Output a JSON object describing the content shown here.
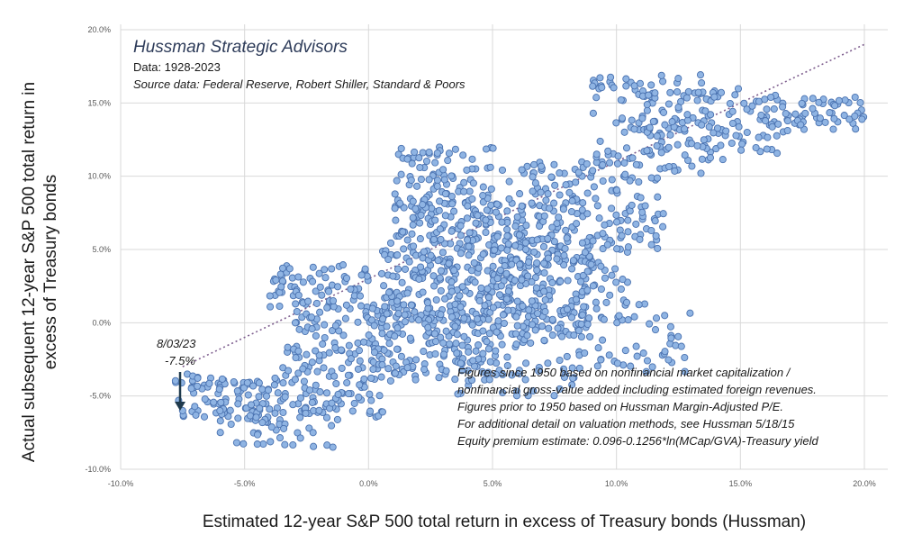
{
  "header": {
    "brand": "Hussman Strategic Advisors",
    "data_range": "Data: 1928-2023",
    "source": "Source data: Federal Reserve, Robert Shiller, Standard & Poors"
  },
  "annotation": {
    "date": "8/03/23",
    "value": "-7.5%"
  },
  "notes": [
    "Figures since 1950 based on nonfinancial market capitalization /",
    "nonfinancial gross-value added including estimated foreign revenues.",
    "Figures prior to 1950 based on Hussman Margin-Adjusted P/E.",
    "For additional detail on valuation methods, see Hussman 5/18/15",
    "Equity premium estimate: 0.096-0.1256*ln(MCap/GVA)-Treasury  yield"
  ],
  "chart_data": {
    "type": "scatter",
    "xlabel": "Estimated 12-year S&P 500 total return in excess of Treasury bonds (Hussman)",
    "ylabel_lines": [
      "Actual subsequent 12-year S&P 500 total return in",
      "excess of Treasury bonds"
    ],
    "xlim": [
      -10,
      20
    ],
    "ylim": [
      -10,
      20
    ],
    "x_ticks": [
      "-10.0%",
      "-5.0%",
      "0.0%",
      "5.0%",
      "10.0%",
      "15.0%",
      "20.0%"
    ],
    "y_ticks": [
      "-10.0%",
      "-5.0%",
      "0.0%",
      "5.0%",
      "10.0%",
      "15.0%",
      "20.0%"
    ],
    "grid": true,
    "marker_color": "#8fb4e3",
    "marker_edge": "#4a72b0",
    "trend_color": "#7f5f8f",
    "trendline": [
      [
        -7.5,
        -3.0
      ],
      [
        20.0,
        19.0
      ]
    ],
    "highlight_point": {
      "x": -7.5,
      "y": -6.0
    },
    "clusters": [
      {
        "x": [
          -7.8,
          -3.5
        ],
        "y": [
          -7.0,
          -3.5
        ],
        "n": 90
      },
      {
        "x": [
          -6.0,
          -1.0
        ],
        "y": [
          -8.5,
          -4.5
        ],
        "n": 60
      },
      {
        "x": [
          -3.5,
          1.0
        ],
        "y": [
          -6.5,
          -1.5
        ],
        "n": 90
      },
      {
        "x": [
          -4.0,
          0.0
        ],
        "y": [
          1.0,
          4.0
        ],
        "n": 70
      },
      {
        "x": [
          -3.0,
          1.5
        ],
        "y": [
          -2.5,
          1.5
        ],
        "n": 80
      },
      {
        "x": [
          0.0,
          5.0
        ],
        "y": [
          -4.0,
          1.0
        ],
        "n": 110
      },
      {
        "x": [
          0.5,
          6.5
        ],
        "y": [
          0.0,
          6.0
        ],
        "n": 200
      },
      {
        "x": [
          1.0,
          6.0
        ],
        "y": [
          6.0,
          12.0
        ],
        "n": 150
      },
      {
        "x": [
          3.0,
          8.5
        ],
        "y": [
          -5.0,
          0.0
        ],
        "n": 80
      },
      {
        "x": [
          5.0,
          10.5
        ],
        "y": [
          0.0,
          6.0
        ],
        "n": 120
      },
      {
        "x": [
          6.0,
          12.0
        ],
        "y": [
          5.0,
          11.0
        ],
        "n": 150
      },
      {
        "x": [
          8.5,
          13.0
        ],
        "y": [
          -3.5,
          1.5
        ],
        "n": 50
      },
      {
        "x": [
          9.0,
          14.0
        ],
        "y": [
          10.0,
          17.0
        ],
        "n": 110
      },
      {
        "x": [
          11.0,
          16.5
        ],
        "y": [
          11.0,
          16.0
        ],
        "n": 100
      },
      {
        "x": [
          16.0,
          20.0
        ],
        "y": [
          13.0,
          15.5
        ],
        "n": 60
      },
      {
        "x": [
          2.0,
          9.0
        ],
        "y": [
          -1.0,
          9.0
        ],
        "n": 250
      }
    ]
  }
}
